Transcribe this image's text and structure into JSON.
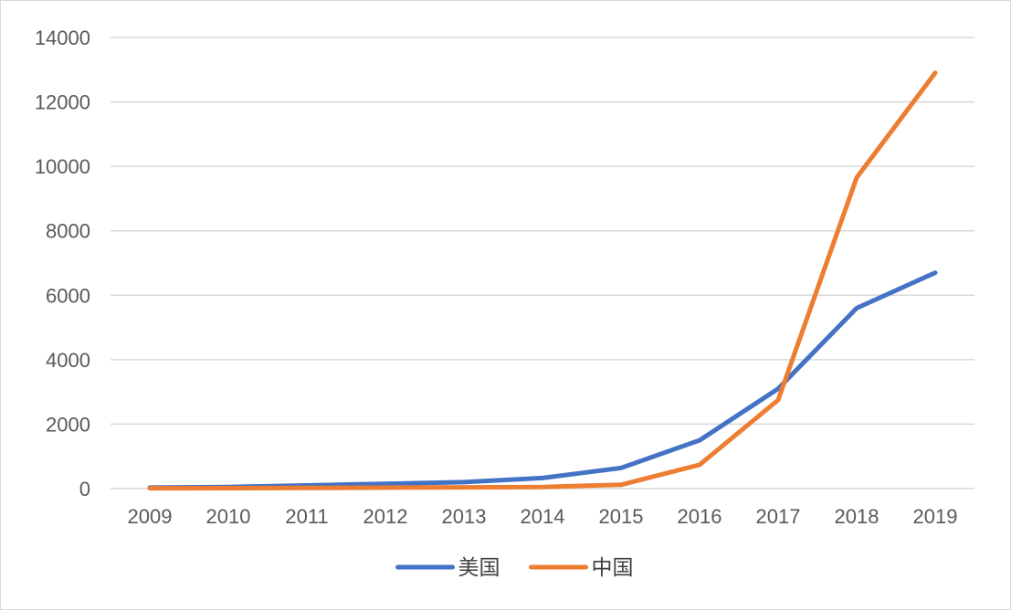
{
  "chart_data": {
    "type": "line",
    "title": "",
    "xlabel": "",
    "ylabel": "",
    "categories": [
      "2009",
      "2010",
      "2011",
      "2012",
      "2013",
      "2014",
      "2015",
      "2016",
      "2017",
      "2018",
      "2019"
    ],
    "ylim": [
      0,
      14000
    ],
    "yticks": [
      0,
      2000,
      4000,
      6000,
      8000,
      10000,
      12000,
      14000
    ],
    "grid": true,
    "legend_position": "bottom",
    "series": [
      {
        "name": "美国",
        "color": "#4472C4",
        "values": [
          30,
          50,
          100,
          150,
          200,
          330,
          640,
          1500,
          3100,
          5600,
          6700
        ]
      },
      {
        "name": "中国",
        "color": "#ED7D31",
        "values": [
          10,
          15,
          20,
          30,
          40,
          50,
          120,
          740,
          2750,
          9650,
          12900
        ]
      }
    ]
  }
}
